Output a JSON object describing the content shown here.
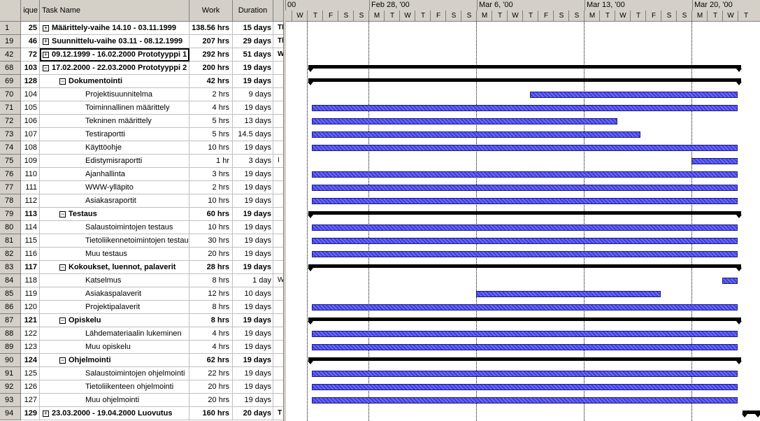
{
  "columns": {
    "unique": "ique",
    "name": "Task Name",
    "work": "Work",
    "duration": "Duration"
  },
  "timescale": {
    "weeks": [
      "00",
      "Feb 28, '00",
      "Mar 6, '00",
      "Mar 13, '00",
      "Mar 20, '00"
    ],
    "days": [
      "W",
      "T",
      "F",
      "S",
      "S",
      "M",
      "T",
      "W",
      "T",
      "F",
      "S",
      "S",
      "M",
      "T",
      "W",
      "T",
      "F",
      "S",
      "S",
      "M",
      "T",
      "W",
      "T",
      "F",
      "S",
      "S",
      "M",
      "T",
      "W",
      "T"
    ]
  },
  "rows": [
    {
      "id": "1",
      "uid": "25",
      "name": "Määrittely-vaihe 14.10 - 03.11.1999",
      "work": "138.56 hrs",
      "dur": "15 days",
      "extra": "Th",
      "level": 0,
      "summary": true,
      "expander": "+",
      "bar": null
    },
    {
      "id": "19",
      "uid": "46",
      "name": "Suunnittelu-vaihe 03.11 - 08.12.1999",
      "work": "207 hrs",
      "dur": "29 days",
      "extra": "Th",
      "level": 0,
      "summary": true,
      "expander": "+",
      "bar": null
    },
    {
      "id": "42",
      "uid": "72",
      "name": "09.12.1999 - 16.02.2000 Prototyyppi 1",
      "work": "292 hrs",
      "dur": "51 days",
      "extra": "W",
      "level": 0,
      "summary": true,
      "expander": "+",
      "selected": true,
      "bar": null
    },
    {
      "id": "68",
      "uid": "103",
      "name": "17.02.2000 - 22.03.2000 Prototyyppi 2",
      "work": "200 hrs",
      "dur": "19 days",
      "extra": "",
      "level": 0,
      "summary": true,
      "expander": "−",
      "bar": {
        "type": "summary",
        "start": 1.1,
        "end": 29.25
      }
    },
    {
      "id": "69",
      "uid": "128",
      "name": "Dokumentointi",
      "work": "42 hrs",
      "dur": "19 days",
      "extra": "",
      "level": 1,
      "summary": true,
      "expander": "−",
      "bar": {
        "type": "summary",
        "start": 1.1,
        "end": 29.25
      }
    },
    {
      "id": "70",
      "uid": "104",
      "name": "Projektisuunnitelma",
      "work": "2 hrs",
      "dur": "9 days",
      "extra": "",
      "level": 2,
      "summary": false,
      "bar": {
        "type": "task",
        "start": 15.5,
        "end": 29.0
      }
    },
    {
      "id": "71",
      "uid": "105",
      "name": "Toiminnallinen määrittely",
      "work": "4 hrs",
      "dur": "19 days",
      "extra": "",
      "level": 2,
      "summary": false,
      "bar": {
        "type": "task",
        "start": 1.3,
        "end": 29.0
      }
    },
    {
      "id": "72",
      "uid": "106",
      "name": "Tekninen määrittely",
      "work": "5 hrs",
      "dur": "13 days",
      "extra": "",
      "level": 2,
      "summary": false,
      "bar": {
        "type": "task",
        "start": 1.3,
        "end": 21.2
      }
    },
    {
      "id": "73",
      "uid": "107",
      "name": "Testiraportti",
      "work": "5 hrs",
      "dur": "14.5 days",
      "extra": "",
      "level": 2,
      "summary": false,
      "bar": {
        "type": "task",
        "start": 1.3,
        "end": 22.7
      }
    },
    {
      "id": "74",
      "uid": "108",
      "name": "Käyttöohje",
      "work": "10 hrs",
      "dur": "19 days",
      "extra": "",
      "level": 2,
      "summary": false,
      "bar": {
        "type": "task",
        "start": 1.3,
        "end": 29.0
      }
    },
    {
      "id": "75",
      "uid": "109",
      "name": "Edistymisraportti",
      "work": "1 hr",
      "dur": "3 days",
      "extra": "I",
      "level": 2,
      "summary": false,
      "bar": {
        "type": "task",
        "start": 26.0,
        "end": 29.0
      }
    },
    {
      "id": "76",
      "uid": "110",
      "name": "Ajanhallinta",
      "work": "3 hrs",
      "dur": "19 days",
      "extra": "",
      "level": 2,
      "summary": false,
      "bar": {
        "type": "task",
        "start": 1.3,
        "end": 29.0
      }
    },
    {
      "id": "77",
      "uid": "111",
      "name": "WWW-ylläpito",
      "work": "2 hrs",
      "dur": "19 days",
      "extra": "",
      "level": 2,
      "summary": false,
      "bar": {
        "type": "task",
        "start": 1.3,
        "end": 29.0
      }
    },
    {
      "id": "78",
      "uid": "112",
      "name": "Asiakasraportit",
      "work": "10 hrs",
      "dur": "19 days",
      "extra": "",
      "level": 2,
      "summary": false,
      "bar": {
        "type": "task",
        "start": 1.3,
        "end": 29.0
      }
    },
    {
      "id": "79",
      "uid": "113",
      "name": "Testaus",
      "work": "60 hrs",
      "dur": "19 days",
      "extra": "",
      "level": 1,
      "summary": true,
      "expander": "−",
      "bar": {
        "type": "summary",
        "start": 1.1,
        "end": 29.25
      }
    },
    {
      "id": "80",
      "uid": "114",
      "name": "Salaustoimintojen testaus",
      "work": "10 hrs",
      "dur": "19 days",
      "extra": "",
      "level": 2,
      "summary": false,
      "bar": {
        "type": "task",
        "start": 1.3,
        "end": 29.0
      }
    },
    {
      "id": "81",
      "uid": "115",
      "name": "Tietoliikennetoimintojen testaus",
      "work": "30 hrs",
      "dur": "19 days",
      "extra": "",
      "level": 2,
      "summary": false,
      "bar": {
        "type": "task",
        "start": 1.3,
        "end": 29.0
      }
    },
    {
      "id": "82",
      "uid": "116",
      "name": "Muu testaus",
      "work": "20 hrs",
      "dur": "19 days",
      "extra": "",
      "level": 2,
      "summary": false,
      "bar": {
        "type": "task",
        "start": 1.3,
        "end": 29.0
      }
    },
    {
      "id": "83",
      "uid": "117",
      "name": "Kokoukset, luennot, palaverit",
      "work": "28 hrs",
      "dur": "19 days",
      "extra": "",
      "level": 1,
      "summary": true,
      "expander": "−",
      "bar": {
        "type": "summary",
        "start": 1.1,
        "end": 29.25
      }
    },
    {
      "id": "84",
      "uid": "118",
      "name": "Katselmus",
      "work": "8 hrs",
      "dur": "1 day",
      "extra": "W",
      "level": 2,
      "summary": false,
      "bar": {
        "type": "task",
        "start": 28.0,
        "end": 29.0
      }
    },
    {
      "id": "85",
      "uid": "119",
      "name": "Asiakaspalaverit",
      "work": "12 hrs",
      "dur": "10 days",
      "extra": "",
      "level": 2,
      "summary": false,
      "bar": {
        "type": "task",
        "start": 12.0,
        "end": 24.0
      }
    },
    {
      "id": "86",
      "uid": "120",
      "name": "Projektipalaverit",
      "work": "8 hrs",
      "dur": "19 days",
      "extra": "",
      "level": 2,
      "summary": false,
      "bar": {
        "type": "task",
        "start": 1.3,
        "end": 29.0
      }
    },
    {
      "id": "87",
      "uid": "121",
      "name": "Opiskelu",
      "work": "8 hrs",
      "dur": "19 days",
      "extra": "",
      "level": 1,
      "summary": true,
      "expander": "−",
      "bar": {
        "type": "summary",
        "start": 1.1,
        "end": 29.25
      }
    },
    {
      "id": "88",
      "uid": "122",
      "name": "Lähdemateriaalin lukeminen",
      "work": "4 hrs",
      "dur": "19 days",
      "extra": "",
      "level": 2,
      "summary": false,
      "bar": {
        "type": "task",
        "start": 1.3,
        "end": 29.0
      }
    },
    {
      "id": "89",
      "uid": "123",
      "name": "Muu opiskelu",
      "work": "4 hrs",
      "dur": "19 days",
      "extra": "",
      "level": 2,
      "summary": false,
      "bar": {
        "type": "task",
        "start": 1.3,
        "end": 29.0
      }
    },
    {
      "id": "90",
      "uid": "124",
      "name": "Ohjelmointi",
      "work": "62 hrs",
      "dur": "19 days",
      "extra": "",
      "level": 1,
      "summary": true,
      "expander": "−",
      "bar": {
        "type": "summary",
        "start": 1.1,
        "end": 29.25
      }
    },
    {
      "id": "91",
      "uid": "125",
      "name": "Salaustoimintojen ohjelmointi",
      "work": "22 hrs",
      "dur": "19 days",
      "extra": "",
      "level": 2,
      "summary": false,
      "bar": {
        "type": "task",
        "start": 1.3,
        "end": 29.0
      }
    },
    {
      "id": "92",
      "uid": "126",
      "name": "Tietoliikenteen ohjelmointi",
      "work": "20 hrs",
      "dur": "19 days",
      "extra": "",
      "level": 2,
      "summary": false,
      "bar": {
        "type": "task",
        "start": 1.3,
        "end": 29.0
      }
    },
    {
      "id": "93",
      "uid": "127",
      "name": "Muu ohjelmointi",
      "work": "20 hrs",
      "dur": "19 days",
      "extra": "",
      "level": 2,
      "summary": false,
      "bar": {
        "type": "task",
        "start": 1.3,
        "end": 29.0
      }
    },
    {
      "id": "94",
      "uid": "129",
      "name": "23.03.2000 - 19.04.2000 Luovutus",
      "work": "160 hrs",
      "dur": "20 days",
      "extra": "T",
      "level": 0,
      "summary": true,
      "expander": "+",
      "bar": {
        "type": "summary",
        "start": 29.3,
        "end": 31.0
      }
    }
  ]
}
